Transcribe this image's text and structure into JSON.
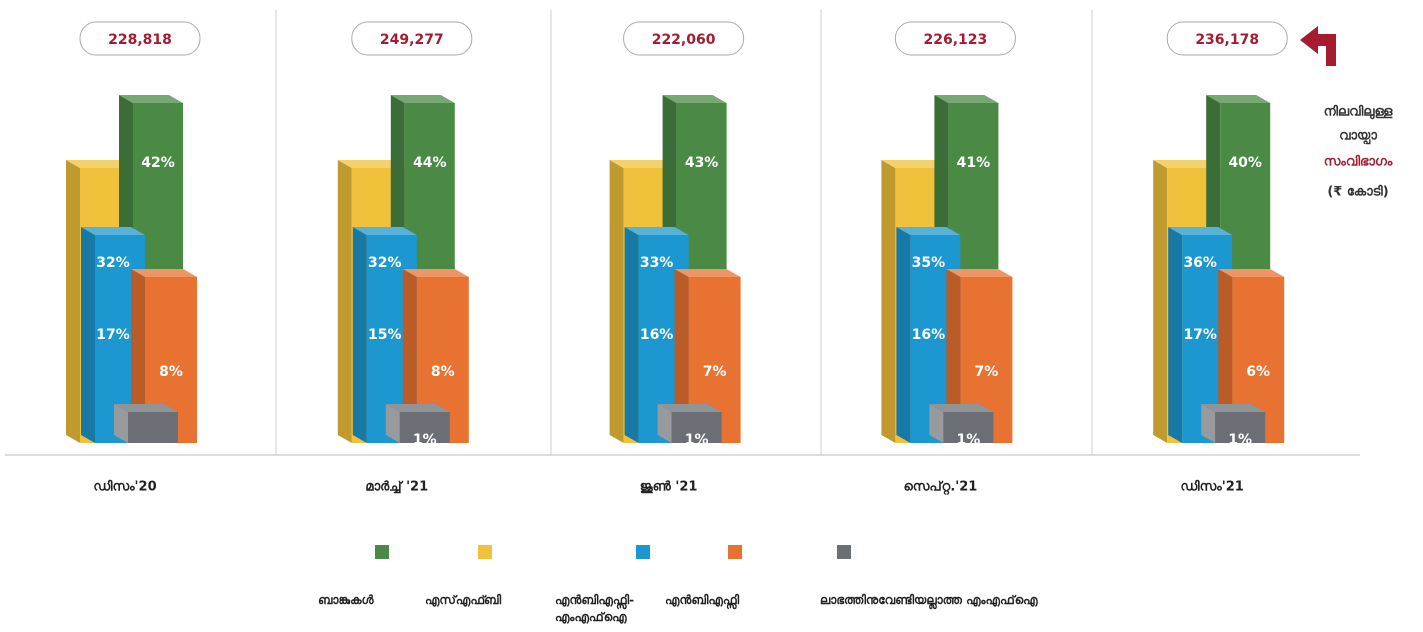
{
  "chart_data": {
    "type": "bar3d",
    "categories": [
      "ഡിസം'20",
      "മാർച്ച് '21",
      "ജൂൺ '21",
      "സെപ്റ്റ.'21",
      "ഡിസം'21"
    ],
    "totals": [
      228818,
      249277,
      222060,
      226123,
      236178
    ],
    "total_labels": [
      "228,818",
      "249,277",
      "222,060",
      "226,123",
      "236,178"
    ],
    "side_note": [
      "നിലവിലുള്ള",
      "വായ്പാ",
      "സംവിഭാഗം",
      "(₹ കോടി)"
    ],
    "series": [
      {
        "name": "ബാങ്കുകൾ",
        "color": "#4a8a45",
        "values": [
          42,
          44,
          43,
          41,
          40
        ],
        "value_labels": [
          "42%",
          "44%",
          "43%",
          "41%",
          "40%"
        ]
      },
      {
        "name": "എസ്എഫ്ബി",
        "color": "#f0c13a",
        "values": [
          17,
          15,
          16,
          16,
          17
        ],
        "value_labels": [
          "17%",
          "15%",
          "16%",
          "16%",
          "17%"
        ]
      },
      {
        "name": "എൻബിഎഫ്സി-എംഎഫ്ഐ",
        "color": "#1d97cf",
        "values": [
          32,
          32,
          33,
          35,
          36
        ],
        "value_labels": [
          "32%",
          "32%",
          "33%",
          "35%",
          "36%"
        ]
      },
      {
        "name": "എൻബിഎഫ്സി",
        "color": "#e87232",
        "values": [
          8,
          8,
          7,
          7,
          6
        ],
        "value_labels": [
          "8%",
          "8%",
          "7%",
          "7%",
          "6%"
        ]
      },
      {
        "name": "ലാഭത്തിനുവേണ്ടിയല്ലാത്ത എംഎഫ്ഐ",
        "color": "#6b6f75",
        "values": [
          1,
          1,
          1,
          1,
          1
        ],
        "value_labels": [
          null,
          "1%",
          "1%",
          "1%",
          "1%"
        ]
      }
    ]
  }
}
